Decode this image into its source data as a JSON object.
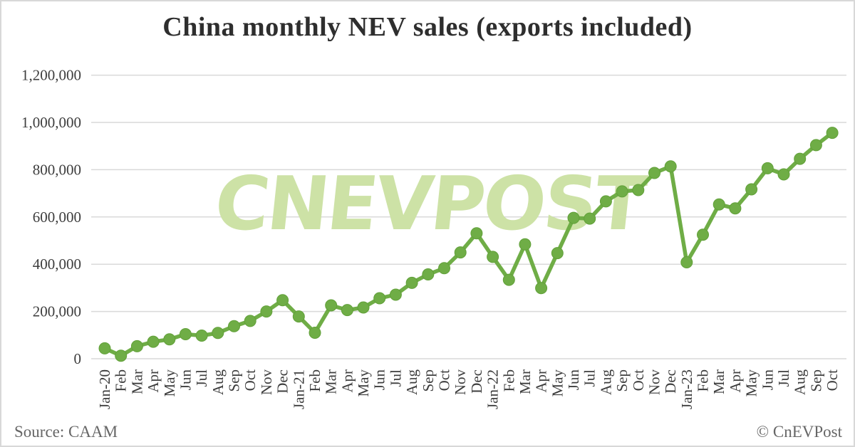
{
  "header": {
    "title": "China monthly NEV sales (exports included)"
  },
  "chart_data": {
    "type": "line",
    "title": "China monthly NEV sales (exports included)",
    "series_name": "China monthly NEV sales (units)",
    "categories": [
      "Jan-20",
      "Feb",
      "Mar",
      "Apr",
      "May",
      "Jun",
      "Jul",
      "Aug",
      "Sep",
      "Oct",
      "Nov",
      "Dec",
      "Jan-21",
      "Feb",
      "Mar",
      "Apr",
      "May",
      "Jun",
      "Jul",
      "Aug",
      "Sep",
      "Oct",
      "Nov",
      "Dec",
      "Jan-22",
      "Feb",
      "Mar",
      "Apr",
      "May",
      "Jun",
      "Jul",
      "Aug",
      "Sep",
      "Oct",
      "Nov",
      "Dec",
      "Jan-23",
      "Feb",
      "Mar",
      "Apr",
      "May",
      "Jun",
      "Jul",
      "Aug",
      "Sep",
      "Oct"
    ],
    "values": [
      44000,
      13000,
      53000,
      72000,
      82000,
      104000,
      98000,
      109000,
      138000,
      160000,
      200000,
      248000,
      179000,
      110000,
      226000,
      206000,
      217000,
      256000,
      271000,
      321000,
      357000,
      383000,
      450000,
      531000,
      431000,
      334000,
      484000,
      299000,
      447000,
      596000,
      593000,
      666000,
      708000,
      714000,
      786000,
      814000,
      408000,
      525000,
      653000,
      636000,
      717000,
      806000,
      780000,
      846000,
      904000,
      956000
    ],
    "ylim": [
      0,
      1200000
    ],
    "y_ticks": [
      {
        "value": 0,
        "label": "0"
      },
      {
        "value": 200000,
        "label": "200,000"
      },
      {
        "value": 400000,
        "label": "400,000"
      },
      {
        "value": 600000,
        "label": "600,000"
      },
      {
        "value": 800000,
        "label": "800,000"
      },
      {
        "value": 1000000,
        "label": "1,000,000"
      },
      {
        "value": 1200000,
        "label": "1,200,000"
      }
    ],
    "grid": "horizontal",
    "legend": "none",
    "watermark": "CNEVPOST",
    "colors": {
      "line": "#6FAD46",
      "marker": "#6FAD46",
      "marker_edge": "#61A039",
      "watermark": "#CDE2A6",
      "grid": "#D9D9D9",
      "axis_text": "#3D3D3D"
    }
  },
  "footer": {
    "source": "Source: CAAM",
    "copyright": "© CnEVPost"
  }
}
